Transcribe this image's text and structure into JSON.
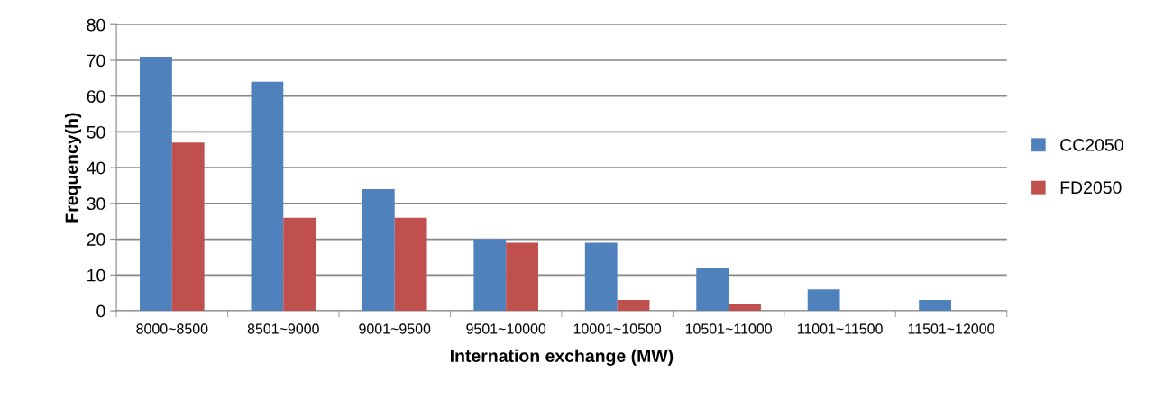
{
  "chart_data": {
    "type": "bar",
    "xlabel": "Internation exchange (MW)",
    "ylabel": "Frequency(h)",
    "categories": [
      "8000~8500",
      "8501~9000",
      "9001~9500",
      "9501~10000",
      "10001~10500",
      "10501~11000",
      "11001~11500",
      "11501~12000"
    ],
    "series": [
      {
        "name": "CC2050",
        "color": "#4f81bd",
        "values": [
          71,
          64,
          34,
          20,
          19,
          12,
          6,
          3
        ]
      },
      {
        "name": "FD2050",
        "color": "#c0504d",
        "values": [
          47,
          26,
          26,
          19,
          3,
          2,
          0,
          0
        ]
      }
    ],
    "ylim": [
      0,
      80
    ],
    "yticks": [
      0,
      10,
      20,
      30,
      40,
      50,
      60,
      70,
      80
    ],
    "grid": "y",
    "legend": "right"
  }
}
